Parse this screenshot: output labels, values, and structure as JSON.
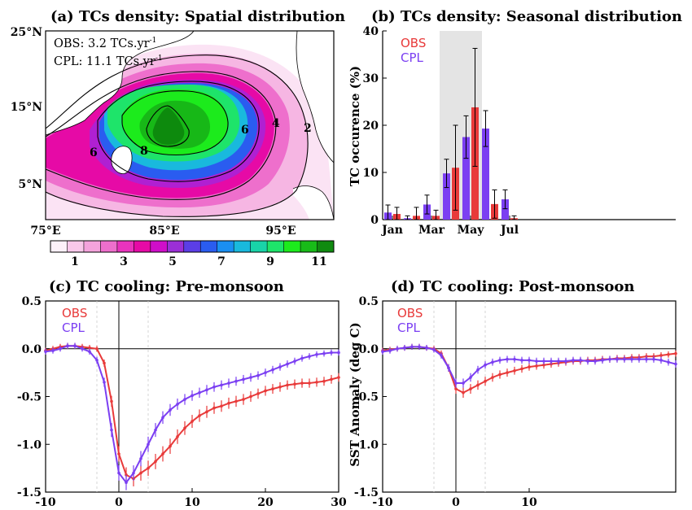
{
  "colors": {
    "obs": "#e83a3a",
    "cpl": "#7b3ff2",
    "shade": "#e4e4e4",
    "land": "#ffffff"
  },
  "chart_data": [
    {
      "id": "a",
      "type": "heatmap",
      "title": "(a) TCs density: Spatial distribution",
      "annotations": [
        "OBS: 3.2 TCs.yr",
        "-1",
        "CPL: 11.1 TCs.yr",
        "-1"
      ],
      "xticks": [
        "75°E",
        "85°E",
        "95°E"
      ],
      "yticks": [
        "25°N",
        "15°N",
        "5°N"
      ],
      "xlim": [
        75,
        100
      ],
      "ylim": [
        0,
        25
      ],
      "colorbar_ticks": [
        "1",
        "3",
        "5",
        "7",
        "9",
        "11"
      ],
      "colorbar_colors": [
        "#fdf1f9",
        "#f9c8ea",
        "#f4a3dc",
        "#ee6fcc",
        "#e933bd",
        "#e60aa6",
        "#cf0ec9",
        "#9b2fd6",
        "#5b3ee6",
        "#2a5cf0",
        "#1a8ff2",
        "#19b9dd",
        "#19d3a8",
        "#1ee46a",
        "#1ceb1c",
        "#18bb18",
        "#108a10"
      ],
      "contour_labels": [
        "2",
        "4",
        "6",
        "6",
        "8"
      ],
      "peak": {
        "lon": 85,
        "lat": 11,
        "value": 11
      }
    },
    {
      "id": "b",
      "type": "bar",
      "title": "(b) TCs density: Seasonal distribution",
      "ylabel": "TC occurence (%)",
      "ylim": [
        0,
        40
      ],
      "yticks": [
        "0",
        "10",
        "20",
        "30",
        "40"
      ],
      "xticks": [
        "Jan",
        "Mar",
        "May",
        "Jul"
      ],
      "shaded_months": [
        4,
        5
      ],
      "series": [
        {
          "name": "OBS",
          "months": [
            1,
            2,
            3,
            4,
            5,
            6,
            7,
            8,
            9,
            10,
            11,
            12
          ],
          "values": [
            1.2,
            0.8,
            0.8,
            11.0,
            23.8,
            3.3,
            0.3,
            0,
            0,
            0,
            0,
            0
          ],
          "err": [
            1.4,
            1.8,
            1.2,
            9.0,
            12.5,
            3.0,
            0.5,
            0,
            0,
            0,
            0,
            0
          ]
        },
        {
          "name": "CPL",
          "months": [
            1,
            2,
            3,
            4,
            5,
            6,
            7,
            8,
            9,
            10,
            11,
            12
          ],
          "values": [
            1.5,
            0.3,
            3.2,
            9.8,
            17.5,
            19.3,
            4.3,
            0,
            0,
            0,
            0,
            0
          ],
          "err": [
            1.6,
            0.5,
            2.0,
            3.0,
            4.5,
            3.8,
            2.0,
            0,
            0,
            0,
            0,
            0
          ]
        }
      ]
    },
    {
      "id": "c",
      "type": "line",
      "title": "(c) TC cooling: Pre-monsoon",
      "xlim": [
        -10,
        30
      ],
      "ylim": [
        -1.5,
        0.5
      ],
      "xticks": [
        "-10",
        "0",
        "10",
        "20",
        "30"
      ],
      "yticks": [
        "0.5",
        "0.0",
        "-0.5",
        "-1.0",
        "-1.5"
      ],
      "x": [
        -10,
        -9,
        -8,
        -7,
        -6,
        -5,
        -4,
        -3,
        -2,
        -1,
        0,
        1,
        2,
        3,
        4,
        5,
        6,
        7,
        8,
        9,
        10,
        11,
        12,
        13,
        14,
        15,
        16,
        17,
        18,
        19,
        20,
        21,
        22,
        23,
        24,
        25,
        26,
        27,
        28,
        29,
        30
      ],
      "series": [
        {
          "name": "OBS",
          "values": [
            -0.02,
            0.0,
            0.02,
            0.03,
            0.03,
            0.02,
            0.01,
            0.0,
            -0.15,
            -0.55,
            -1.1,
            -1.32,
            -1.36,
            -1.3,
            -1.25,
            -1.18,
            -1.1,
            -1.02,
            -0.92,
            -0.83,
            -0.76,
            -0.7,
            -0.66,
            -0.62,
            -0.6,
            -0.57,
            -0.55,
            -0.53,
            -0.5,
            -0.47,
            -0.44,
            -0.42,
            -0.4,
            -0.38,
            -0.37,
            -0.36,
            -0.36,
            -0.35,
            -0.34,
            -0.32,
            -0.3
          ]
        },
        {
          "name": "CPL",
          "values": [
            -0.03,
            -0.02,
            0.0,
            0.03,
            0.03,
            0.0,
            -0.03,
            -0.12,
            -0.35,
            -0.85,
            -1.3,
            -1.4,
            -1.3,
            -1.15,
            -1.0,
            -0.85,
            -0.72,
            -0.64,
            -0.58,
            -0.53,
            -0.49,
            -0.46,
            -0.43,
            -0.4,
            -0.38,
            -0.36,
            -0.34,
            -0.32,
            -0.3,
            -0.28,
            -0.25,
            -0.22,
            -0.19,
            -0.16,
            -0.13,
            -0.1,
            -0.08,
            -0.06,
            -0.05,
            -0.04,
            -0.04
          ]
        }
      ]
    },
    {
      "id": "d",
      "type": "line",
      "title": "(d) TC cooling: Post-monsoon",
      "ylabel": "SST Anomaly (deg C)",
      "xlim": [
        -10,
        30
      ],
      "ylim": [
        -1.5,
        0.5
      ],
      "xticks": [
        "-10",
        "0",
        "10"
      ],
      "yticks": [
        "0.5",
        "0.0",
        "-0.5",
        "-1.0",
        "-1.5"
      ],
      "x": [
        -10,
        -9,
        -8,
        -7,
        -6,
        -5,
        -4,
        -3,
        -2,
        -1,
        0,
        1,
        2,
        3,
        4,
        5,
        6,
        7,
        8,
        9,
        10,
        11,
        12,
        13,
        14,
        15,
        16,
        17,
        18,
        19,
        20,
        21,
        22,
        23,
        24,
        25,
        26,
        27,
        28,
        29,
        30
      ],
      "series": [
        {
          "name": "OBS",
          "values": [
            -0.02,
            -0.01,
            0.0,
            0.01,
            0.02,
            0.02,
            0.01,
            0.0,
            -0.05,
            -0.2,
            -0.42,
            -0.46,
            -0.42,
            -0.38,
            -0.34,
            -0.3,
            -0.27,
            -0.25,
            -0.23,
            -0.21,
            -0.19,
            -0.18,
            -0.17,
            -0.16,
            -0.15,
            -0.14,
            -0.13,
            -0.13,
            -0.12,
            -0.12,
            -0.11,
            -0.11,
            -0.1,
            -0.1,
            -0.09,
            -0.09,
            -0.08,
            -0.08,
            -0.07,
            -0.06,
            -0.05
          ]
        },
        {
          "name": "CPL",
          "values": [
            -0.03,
            -0.02,
            0.0,
            0.01,
            0.02,
            0.02,
            0.01,
            -0.01,
            -0.07,
            -0.2,
            -0.36,
            -0.36,
            -0.3,
            -0.22,
            -0.17,
            -0.14,
            -0.12,
            -0.11,
            -0.11,
            -0.12,
            -0.12,
            -0.13,
            -0.13,
            -0.13,
            -0.13,
            -0.13,
            -0.12,
            -0.12,
            -0.13,
            -0.13,
            -0.12,
            -0.11,
            -0.11,
            -0.11,
            -0.11,
            -0.11,
            -0.11,
            -0.11,
            -0.12,
            -0.14,
            -0.16
          ]
        }
      ]
    }
  ]
}
